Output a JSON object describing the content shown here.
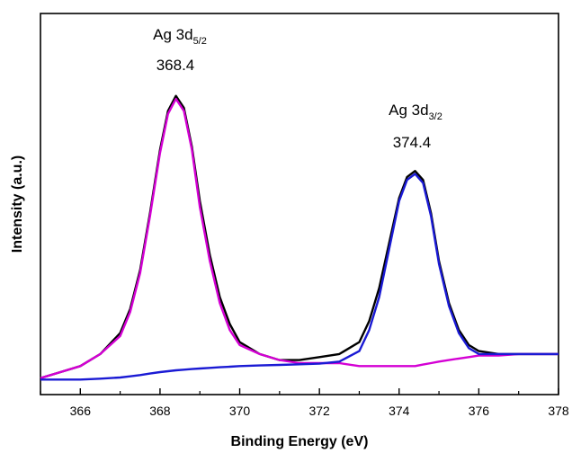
{
  "chart_data": {
    "type": "line",
    "xlabel": "Binding Energy (eV)",
    "ylabel": "Intensity (a.u.)",
    "xlim": [
      365,
      378
    ],
    "ylim": [
      0,
      1
    ],
    "x_ticks": [
      "366",
      "368",
      "370",
      "372",
      "374",
      "376",
      "378"
    ],
    "y_ticks": [],
    "grid": false,
    "x": [
      365.0,
      365.5,
      366.0,
      366.5,
      367.0,
      367.25,
      367.5,
      367.75,
      368.0,
      368.2,
      368.4,
      368.6,
      368.8,
      369.0,
      369.25,
      369.5,
      369.75,
      370.0,
      370.5,
      371.0,
      371.5,
      372.0,
      372.5,
      373.0,
      373.25,
      373.5,
      373.75,
      374.0,
      374.2,
      374.4,
      374.6,
      374.8,
      375.0,
      375.25,
      375.5,
      375.75,
      376.0,
      376.5,
      377.0,
      377.5,
      378.0
    ],
    "series": [
      {
        "color": "#000000",
        "values": [
          0.01,
          0.03,
          0.05,
          0.09,
          0.16,
          0.24,
          0.37,
          0.56,
          0.77,
          0.9,
          0.95,
          0.91,
          0.78,
          0.6,
          0.42,
          0.28,
          0.19,
          0.13,
          0.09,
          0.07,
          0.07,
          0.08,
          0.09,
          0.13,
          0.2,
          0.31,
          0.46,
          0.61,
          0.68,
          0.7,
          0.67,
          0.56,
          0.4,
          0.26,
          0.17,
          0.12,
          0.1,
          0.09,
          0.09,
          0.09,
          0.09
        ]
      },
      {
        "color": "#d400d4",
        "values": [
          0.01,
          0.03,
          0.05,
          0.09,
          0.15,
          0.23,
          0.36,
          0.55,
          0.76,
          0.89,
          0.94,
          0.9,
          0.77,
          0.58,
          0.4,
          0.26,
          0.17,
          0.12,
          0.09,
          0.07,
          0.06,
          0.06,
          0.06,
          0.05,
          0.05,
          0.05,
          0.05,
          0.05,
          0.05,
          0.05,
          0.055,
          0.06,
          0.065,
          0.07,
          0.075,
          0.08,
          0.085,
          0.085,
          0.09,
          0.09,
          0.09
        ]
      },
      {
        "color": "#1a1ad4",
        "values": [
          0.005,
          0.005,
          0.005,
          0.008,
          0.012,
          0.016,
          0.02,
          0.025,
          0.03,
          0.033,
          0.036,
          0.038,
          0.04,
          0.042,
          0.044,
          0.046,
          0.048,
          0.05,
          0.052,
          0.054,
          0.056,
          0.058,
          0.065,
          0.1,
          0.17,
          0.28,
          0.44,
          0.6,
          0.67,
          0.69,
          0.66,
          0.55,
          0.39,
          0.25,
          0.16,
          0.11,
          0.09,
          0.09,
          0.09,
          0.09,
          0.09
        ]
      }
    ],
    "annotations": [
      {
        "label": "Ag 3d",
        "sub": "5/2",
        "value": "368.4"
      },
      {
        "label": "Ag 3d",
        "sub": "3/2",
        "value": "374.4"
      }
    ]
  }
}
